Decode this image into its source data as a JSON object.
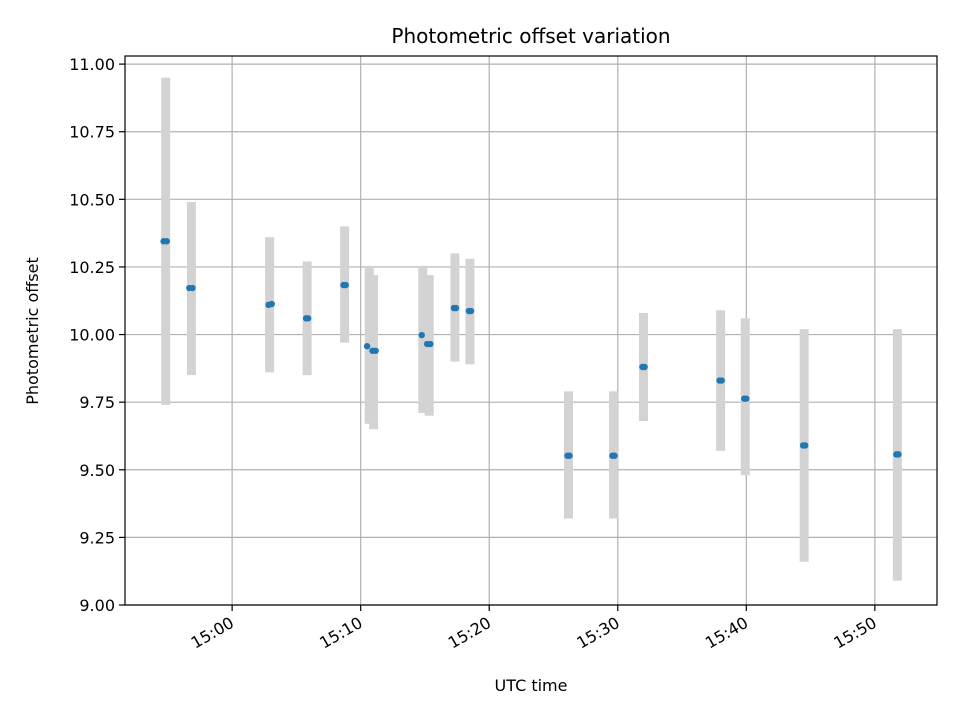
{
  "chart_data": {
    "type": "scatter",
    "title": "Photometric offset variation",
    "xlabel": "UTC time",
    "ylabel": "Photometric offset",
    "x_axis": {
      "kind": "time",
      "range": [
        "14:51:40",
        "15:54:50"
      ],
      "tick_values": [
        "15:00",
        "15:10",
        "15:20",
        "15:30",
        "15:40",
        "15:50"
      ],
      "tick_labels": [
        "15:00",
        "15:10",
        "15:20",
        "15:30",
        "15:40",
        "15:50"
      ]
    },
    "y_axis": {
      "range": [
        9.0,
        11.03
      ],
      "tick_values": [
        9.0,
        9.25,
        9.5,
        9.75,
        10.0,
        10.25,
        10.5,
        10.75,
        11.0
      ],
      "tick_labels": [
        "9.00",
        "9.25",
        "9.50",
        "9.75",
        "10.00",
        "10.25",
        "10.50",
        "10.75",
        "11.00"
      ]
    },
    "grid": true,
    "colors": {
      "points": "#1f77b4",
      "error_bars": "#d3d3d3",
      "grid": "#b0b0b0",
      "axes": "#000000"
    },
    "error_bars": [
      {
        "x": "14:54:50",
        "low": 9.74,
        "high": 10.95
      },
      {
        "x": "14:56:50",
        "low": 9.85,
        "high": 10.49
      },
      {
        "x": "15:02:55",
        "low": 9.86,
        "high": 10.36
      },
      {
        "x": "15:05:50",
        "low": 9.85,
        "high": 10.27
      },
      {
        "x": "15:08:45",
        "low": 9.97,
        "high": 10.4
      },
      {
        "x": "15:10:40",
        "low": 9.67,
        "high": 10.25
      },
      {
        "x": "15:11:00",
        "low": 9.65,
        "high": 10.22
      },
      {
        "x": "15:14:50",
        "low": 9.71,
        "high": 10.25
      },
      {
        "x": "15:15:20",
        "low": 9.7,
        "high": 10.22
      },
      {
        "x": "15:17:20",
        "low": 9.9,
        "high": 10.3
      },
      {
        "x": "15:18:30",
        "low": 9.89,
        "high": 10.28
      },
      {
        "x": "15:26:10",
        "low": 9.32,
        "high": 9.79
      },
      {
        "x": "15:29:40",
        "low": 9.32,
        "high": 9.79
      },
      {
        "x": "15:32:00",
        "low": 9.68,
        "high": 10.08
      },
      {
        "x": "15:38:00",
        "low": 9.57,
        "high": 10.09
      },
      {
        "x": "15:39:55",
        "low": 9.48,
        "high": 10.06
      },
      {
        "x": "15:44:30",
        "low": 9.16,
        "high": 10.02
      },
      {
        "x": "15:51:45",
        "low": 9.09,
        "high": 10.02
      }
    ],
    "points": [
      {
        "x": "14:54:40",
        "y": 10.345
      },
      {
        "x": "14:54:55",
        "y": 10.345
      },
      {
        "x": "14:56:40",
        "y": 10.172
      },
      {
        "x": "14:56:55",
        "y": 10.172
      },
      {
        "x": "15:02:50",
        "y": 10.11
      },
      {
        "x": "15:03:05",
        "y": 10.113
      },
      {
        "x": "15:05:45",
        "y": 10.06
      },
      {
        "x": "15:05:55",
        "y": 10.06
      },
      {
        "x": "15:08:40",
        "y": 10.183
      },
      {
        "x": "15:08:50",
        "y": 10.183
      },
      {
        "x": "15:10:30",
        "y": 9.957
      },
      {
        "x": "15:10:55",
        "y": 9.94
      },
      {
        "x": "15:11:10",
        "y": 9.94
      },
      {
        "x": "15:14:45",
        "y": 9.998
      },
      {
        "x": "15:15:10",
        "y": 9.965
      },
      {
        "x": "15:15:25",
        "y": 9.965
      },
      {
        "x": "15:17:15",
        "y": 10.098
      },
      {
        "x": "15:17:25",
        "y": 10.098
      },
      {
        "x": "15:18:25",
        "y": 10.087
      },
      {
        "x": "15:18:35",
        "y": 10.087
      },
      {
        "x": "15:26:05",
        "y": 9.552
      },
      {
        "x": "15:26:15",
        "y": 9.552
      },
      {
        "x": "15:29:35",
        "y": 9.552
      },
      {
        "x": "15:29:45",
        "y": 9.552
      },
      {
        "x": "15:31:55",
        "y": 9.88
      },
      {
        "x": "15:32:05",
        "y": 9.88
      },
      {
        "x": "15:37:55",
        "y": 9.83
      },
      {
        "x": "15:38:05",
        "y": 9.83
      },
      {
        "x": "15:39:50",
        "y": 9.763
      },
      {
        "x": "15:40:00",
        "y": 9.763
      },
      {
        "x": "15:44:25",
        "y": 9.59
      },
      {
        "x": "15:44:35",
        "y": 9.59
      },
      {
        "x": "15:51:40",
        "y": 9.557
      },
      {
        "x": "15:51:50",
        "y": 9.557
      }
    ]
  }
}
